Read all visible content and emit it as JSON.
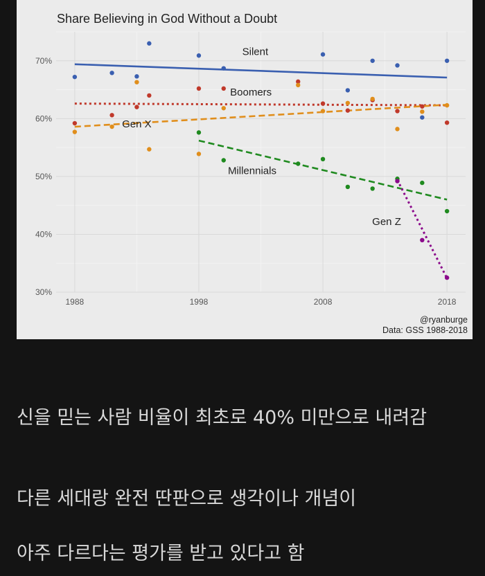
{
  "chart_data": {
    "type": "scatter",
    "title": "Share Believing in God Without a Doubt",
    "xlabel": "",
    "ylabel": "",
    "xlim": [
      1986.5,
      2019.5
    ],
    "ylim": [
      30,
      75
    ],
    "x_ticks": [
      1988,
      1998,
      2008,
      2018
    ],
    "y_ticks": [
      30,
      40,
      50,
      60,
      70
    ],
    "y_tick_labels": [
      "30%",
      "40%",
      "50%",
      "60%",
      "70%"
    ],
    "grid": true,
    "source": "@ryanburge",
    "data_note": "Data: GSS 1988-2018",
    "series": [
      {
        "name": "Silent",
        "color": "#3a5fb0",
        "line_style": "solid",
        "points": [
          [
            1988,
            67.2
          ],
          [
            1991,
            67.9
          ],
          [
            1993,
            67.3
          ],
          [
            1994,
            73.0
          ],
          [
            1998,
            70.9
          ],
          [
            2000,
            68.7
          ],
          [
            2008,
            71.1
          ],
          [
            2010,
            64.9
          ],
          [
            2012,
            70.0
          ],
          [
            2014,
            69.2
          ],
          [
            2016,
            60.2
          ],
          [
            2018,
            70.0
          ]
        ],
        "trend": [
          [
            1988,
            69.4
          ],
          [
            2018,
            67.1
          ]
        ]
      },
      {
        "name": "Boomers",
        "color": "#c0392b",
        "line_style": "dotted",
        "points": [
          [
            1988,
            59.2
          ],
          [
            1991,
            60.6
          ],
          [
            1993,
            62.0
          ],
          [
            1994,
            64.0
          ],
          [
            1998,
            65.2
          ],
          [
            2000,
            65.2
          ],
          [
            2006,
            66.4
          ],
          [
            2008,
            62.6
          ],
          [
            2010,
            61.4
          ],
          [
            2012,
            63.2
          ],
          [
            2014,
            61.3
          ],
          [
            2016,
            62.1
          ],
          [
            2018,
            59.3
          ]
        ],
        "trend": [
          [
            1988,
            62.6
          ],
          [
            2018,
            62.3
          ]
        ]
      },
      {
        "name": "Gen X",
        "color": "#e08e1c",
        "line_style": "dashed",
        "points": [
          [
            1988,
            57.7
          ],
          [
            1991,
            58.6
          ],
          [
            1993,
            66.3
          ],
          [
            1994,
            54.7
          ],
          [
            1998,
            53.9
          ],
          [
            2000,
            61.8
          ],
          [
            2006,
            65.8
          ],
          [
            2008,
            61.3
          ],
          [
            2010,
            62.7
          ],
          [
            2012,
            63.4
          ],
          [
            2014,
            58.2
          ],
          [
            2016,
            61.2
          ],
          [
            2018,
            62.3
          ]
        ],
        "trend": [
          [
            1988,
            58.6
          ],
          [
            2018,
            62.4
          ]
        ]
      },
      {
        "name": "Millennials",
        "color": "#1f8a1f",
        "line_style": "dashed",
        "points": [
          [
            1998,
            57.6
          ],
          [
            2000,
            52.8
          ],
          [
            2006,
            52.2
          ],
          [
            2008,
            53.0
          ],
          [
            2010,
            48.2
          ],
          [
            2012,
            47.9
          ],
          [
            2014,
            49.6
          ],
          [
            2016,
            48.9
          ],
          [
            2018,
            44.0
          ]
        ],
        "trend": [
          [
            1998,
            56.2
          ],
          [
            2018,
            46.0
          ]
        ]
      },
      {
        "name": "Gen Z",
        "color": "#8b0a8b",
        "line_style": "dotted",
        "points": [
          [
            2014,
            49.2
          ],
          [
            2016,
            39.0
          ],
          [
            2018,
            32.5
          ]
        ],
        "trend": [
          [
            2014,
            49.4
          ],
          [
            2018,
            32.4
          ]
        ]
      }
    ]
  },
  "captions": [
    "신을 믿는 사람 비율이 최초로 40% 미만으로 내려감",
    "다른 세대랑 완전 딴판으로 생각이나 개념이",
    "아주 다르다는 평가를 받고 있다고 함"
  ]
}
